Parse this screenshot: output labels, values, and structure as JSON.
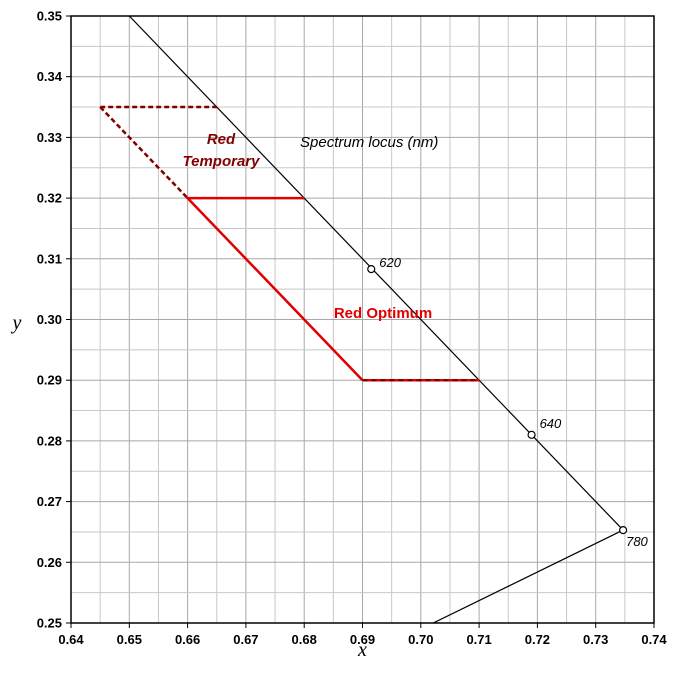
{
  "chart_data": {
    "type": "line",
    "xlabel": "x",
    "ylabel": "y",
    "xlim": [
      0.64,
      0.74
    ],
    "ylim": [
      0.25,
      0.35
    ],
    "xticks": [
      "0.64",
      "0.65",
      "0.66",
      "0.67",
      "0.68",
      "0.69",
      "0.70",
      "0.71",
      "0.72",
      "0.73",
      "0.74"
    ],
    "yticks": [
      "0.25",
      "0.26",
      "0.27",
      "0.28",
      "0.29",
      "0.30",
      "0.31",
      "0.32",
      "0.33",
      "0.34",
      "0.35"
    ],
    "grid": true,
    "minor_grid_step": 0.005,
    "spectrum_locus": {
      "label": "Spectrum locus (nm)",
      "points": [
        [
          0.65,
          0.35
        ],
        [
          0.7347,
          0.2653
        ]
      ],
      "markers": [
        {
          "x": 0.6915,
          "y": 0.3083,
          "label": "620"
        },
        {
          "x": 0.719,
          "y": 0.281,
          "label": "640"
        },
        {
          "x": 0.7347,
          "y": 0.2653,
          "label": "780"
        }
      ],
      "purple_line": [
        [
          0.7347,
          0.2653
        ],
        [
          0.7,
          0.249
        ]
      ]
    },
    "red_optimum": {
      "label": "Red Optimum",
      "color": "#e00000",
      "solid": [
        [
          [
            0.68,
            0.32
          ],
          [
            0.66,
            0.32
          ],
          [
            0.69,
            0.29
          ]
        ]
      ],
      "dashed": [
        [
          [
            0.69,
            0.29
          ],
          [
            0.71,
            0.29
          ]
        ]
      ]
    },
    "red_temporary": {
      "label_line1": "Red",
      "label_line2": "Temporary",
      "color": "#800000",
      "dashed": [
        [
          [
            0.645,
            0.335
          ],
          [
            0.665,
            0.335
          ]
        ],
        [
          [
            0.645,
            0.335
          ],
          [
            0.66,
            0.32
          ]
        ]
      ]
    }
  }
}
